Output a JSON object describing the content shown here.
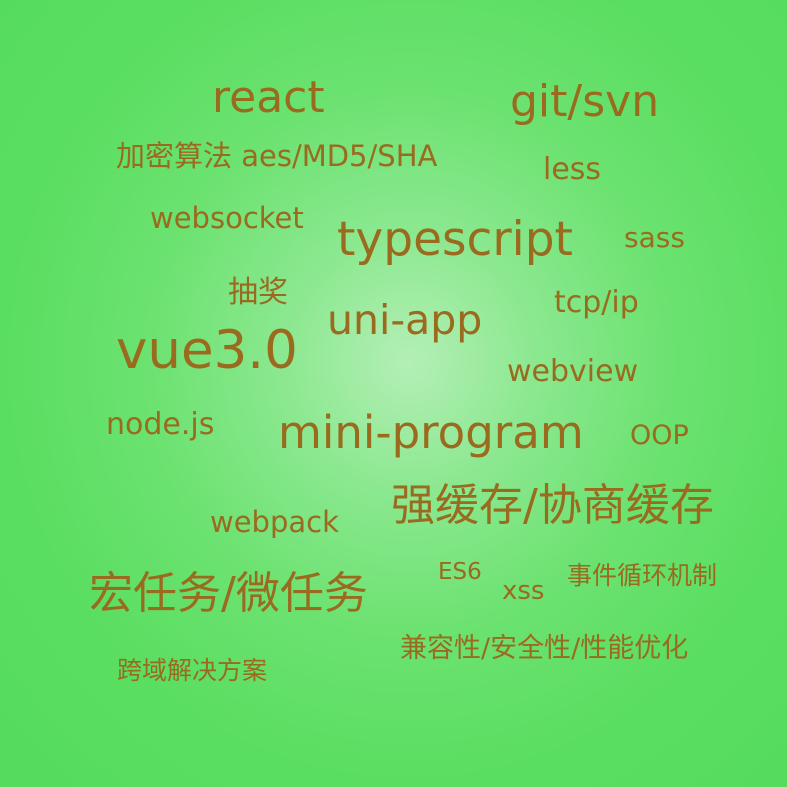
{
  "text_color": "#9a6a1e",
  "background_colors": [
    "#b4efb6",
    "#55dc5c"
  ],
  "words": {
    "react": "react",
    "git_svn": "git/svn",
    "encryption": "加密算法 aes/MD5/SHA",
    "less": "less",
    "websocket": "websocket",
    "typescript": "typescript",
    "sass": "sass",
    "lottery": "抽奖",
    "tcp_ip": "tcp/ip",
    "uni_app": "uni-app",
    "vue3": "vue3.0",
    "webview": "webview",
    "nodejs": "node.js",
    "mini_program": "mini-program",
    "oop": "OOP",
    "cache": "强缓存/协商缓存",
    "webpack": "webpack",
    "tasks": "宏任务/微任务",
    "es6": "ES6",
    "xss": "xss",
    "event_loop": "事件循环机制",
    "compat": "兼容性/安全性/性能优化",
    "cors": "跨域解决方案"
  }
}
